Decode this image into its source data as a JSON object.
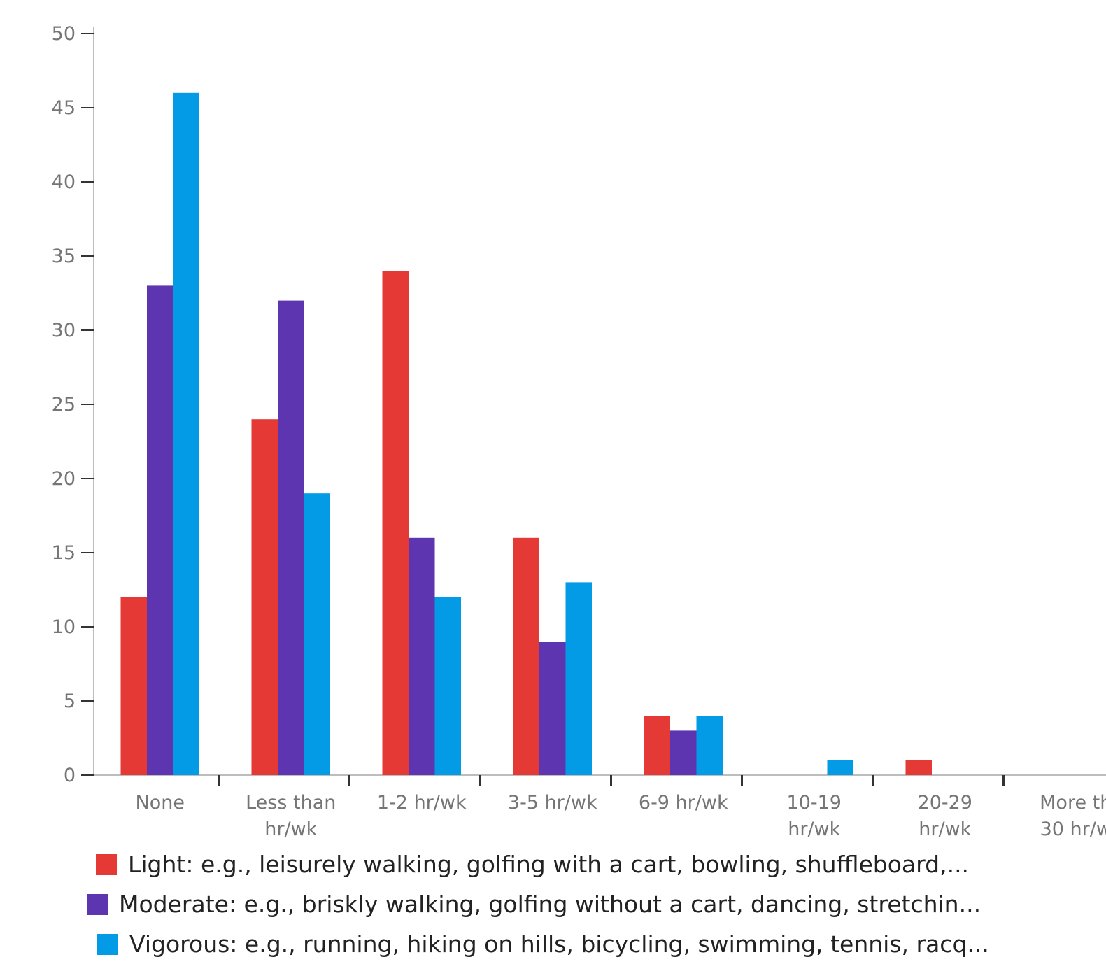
{
  "chart_data": {
    "type": "bar",
    "title": "",
    "xlabel": "",
    "ylabel": "",
    "ylim": [
      0,
      50
    ],
    "yticks": [
      0,
      5,
      10,
      15,
      20,
      25,
      30,
      35,
      40,
      45,
      50
    ],
    "categories": [
      [
        "None"
      ],
      [
        "Less than",
        "hr/wk"
      ],
      [
        "1-2 hr/wk"
      ],
      [
        "3-5 hr/wk"
      ],
      [
        "6-9 hr/wk"
      ],
      [
        "10-19",
        "hr/wk"
      ],
      [
        "20-29",
        "hr/wk"
      ],
      [
        "More th",
        "30 hr/w"
      ]
    ],
    "series": [
      {
        "name": "Light: e.g., leisurely walking, golfing with a cart, bowling, shuffleboard,...",
        "color": "#e53935",
        "values": [
          12,
          24,
          34,
          16,
          4,
          0,
          1,
          0
        ]
      },
      {
        "name": "Moderate: e.g., briskly walking, golfing without a cart, dancing, stretchin...",
        "color": "#5e35b1",
        "values": [
          33,
          32,
          16,
          9,
          3,
          0,
          0,
          0
        ]
      },
      {
        "name": "Vigorous: e.g., running, hiking on hills, bicycling, swimming, tennis, racq...",
        "color": "#039be5",
        "values": [
          46,
          19,
          12,
          13,
          4,
          1,
          0,
          0
        ]
      }
    ],
    "grid": false,
    "legend_position": "bottom"
  }
}
